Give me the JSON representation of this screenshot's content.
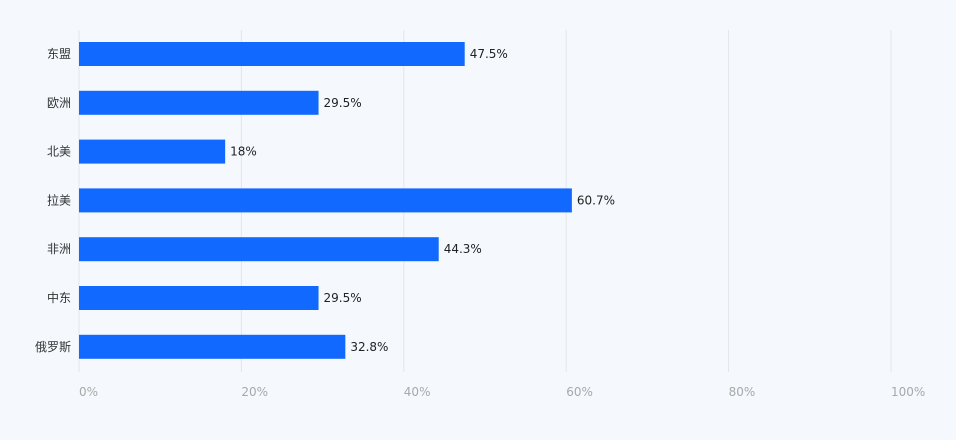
{
  "chart_data": {
    "type": "bar",
    "orientation": "horizontal",
    "categories": [
      "东盟",
      "欧洲",
      "北美",
      "拉美",
      "非洲",
      "中东",
      "俄罗斯"
    ],
    "values": [
      47.5,
      29.5,
      18,
      60.7,
      44.3,
      29.5,
      32.8
    ],
    "value_labels": [
      "47.5%",
      "29.5%",
      "18%",
      "60.7%",
      "44.3%",
      "29.5%",
      "32.8%"
    ],
    "x_ticks": [
      "0%",
      "20%",
      "40%",
      "60%",
      "80%",
      "100%"
    ],
    "xlim": [
      0,
      100
    ],
    "grid": true,
    "legend": "none",
    "colors": {
      "bar": "#1269ff",
      "grid": "#e3e6ea",
      "background": "#f5f9fe",
      "tick_text": "#a8a8a8",
      "label_text": "#333333"
    }
  }
}
